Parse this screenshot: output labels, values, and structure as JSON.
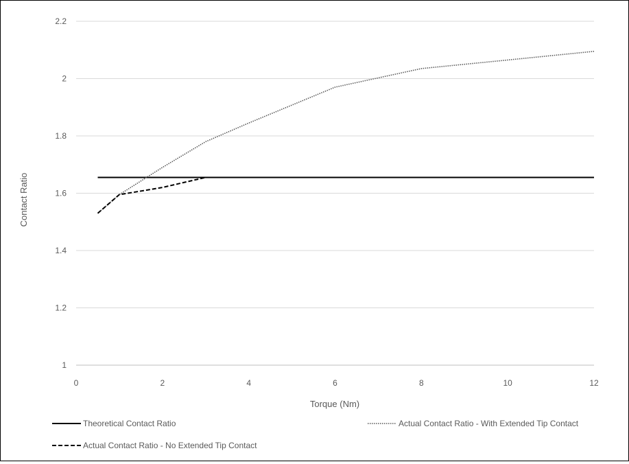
{
  "chart_data": {
    "type": "line",
    "title": "",
    "xlabel": "Torque (Nm)",
    "ylabel": "Contact Ratio",
    "xlim": [
      0,
      12
    ],
    "ylim": [
      1,
      2.2
    ],
    "xticks": [
      0,
      2,
      4,
      6,
      8,
      10,
      12
    ],
    "xtick_labels": [
      "0",
      "2",
      "4",
      "6",
      "8",
      "10",
      "12"
    ],
    "yticks": [
      1,
      1.2,
      1.4,
      1.6,
      1.8,
      2,
      2.2
    ],
    "ytick_labels": [
      "1",
      "1.2",
      "1.4",
      "1.6",
      "1.8",
      "2",
      "2.2"
    ],
    "grid": "horizontal",
    "legend_position": "bottom",
    "series": [
      {
        "name": "Theoretical Contact Ratio",
        "style": "solid",
        "color": "#000000",
        "x": [
          0.5,
          1,
          2,
          3,
          4,
          6,
          8,
          10,
          12
        ],
        "y": [
          1.655,
          1.655,
          1.655,
          1.655,
          1.655,
          1.655,
          1.655,
          1.655,
          1.655
        ]
      },
      {
        "name": "Actual Contact Ratio - With Extended Tip Contact",
        "style": "dotted",
        "color": "#595959",
        "x": [
          0.5,
          1,
          2,
          3,
          4,
          6,
          8,
          10,
          12
        ],
        "y": [
          1.53,
          1.595,
          1.69,
          1.78,
          1.845,
          1.97,
          2.035,
          2.065,
          2.095
        ]
      },
      {
        "name": "Actual Contact Ratio - No Extended Tip Contact",
        "style": "dashed",
        "color": "#000000",
        "x": [
          0.5,
          1,
          2,
          3,
          4,
          6,
          8,
          10,
          12
        ],
        "y": [
          1.53,
          1.595,
          1.62,
          1.655,
          1.655,
          1.655,
          1.655,
          1.655,
          1.655
        ]
      }
    ]
  },
  "colors": {
    "grid": "#d9d9d9",
    "axis": "#bfbfbf",
    "text": "#595959"
  }
}
